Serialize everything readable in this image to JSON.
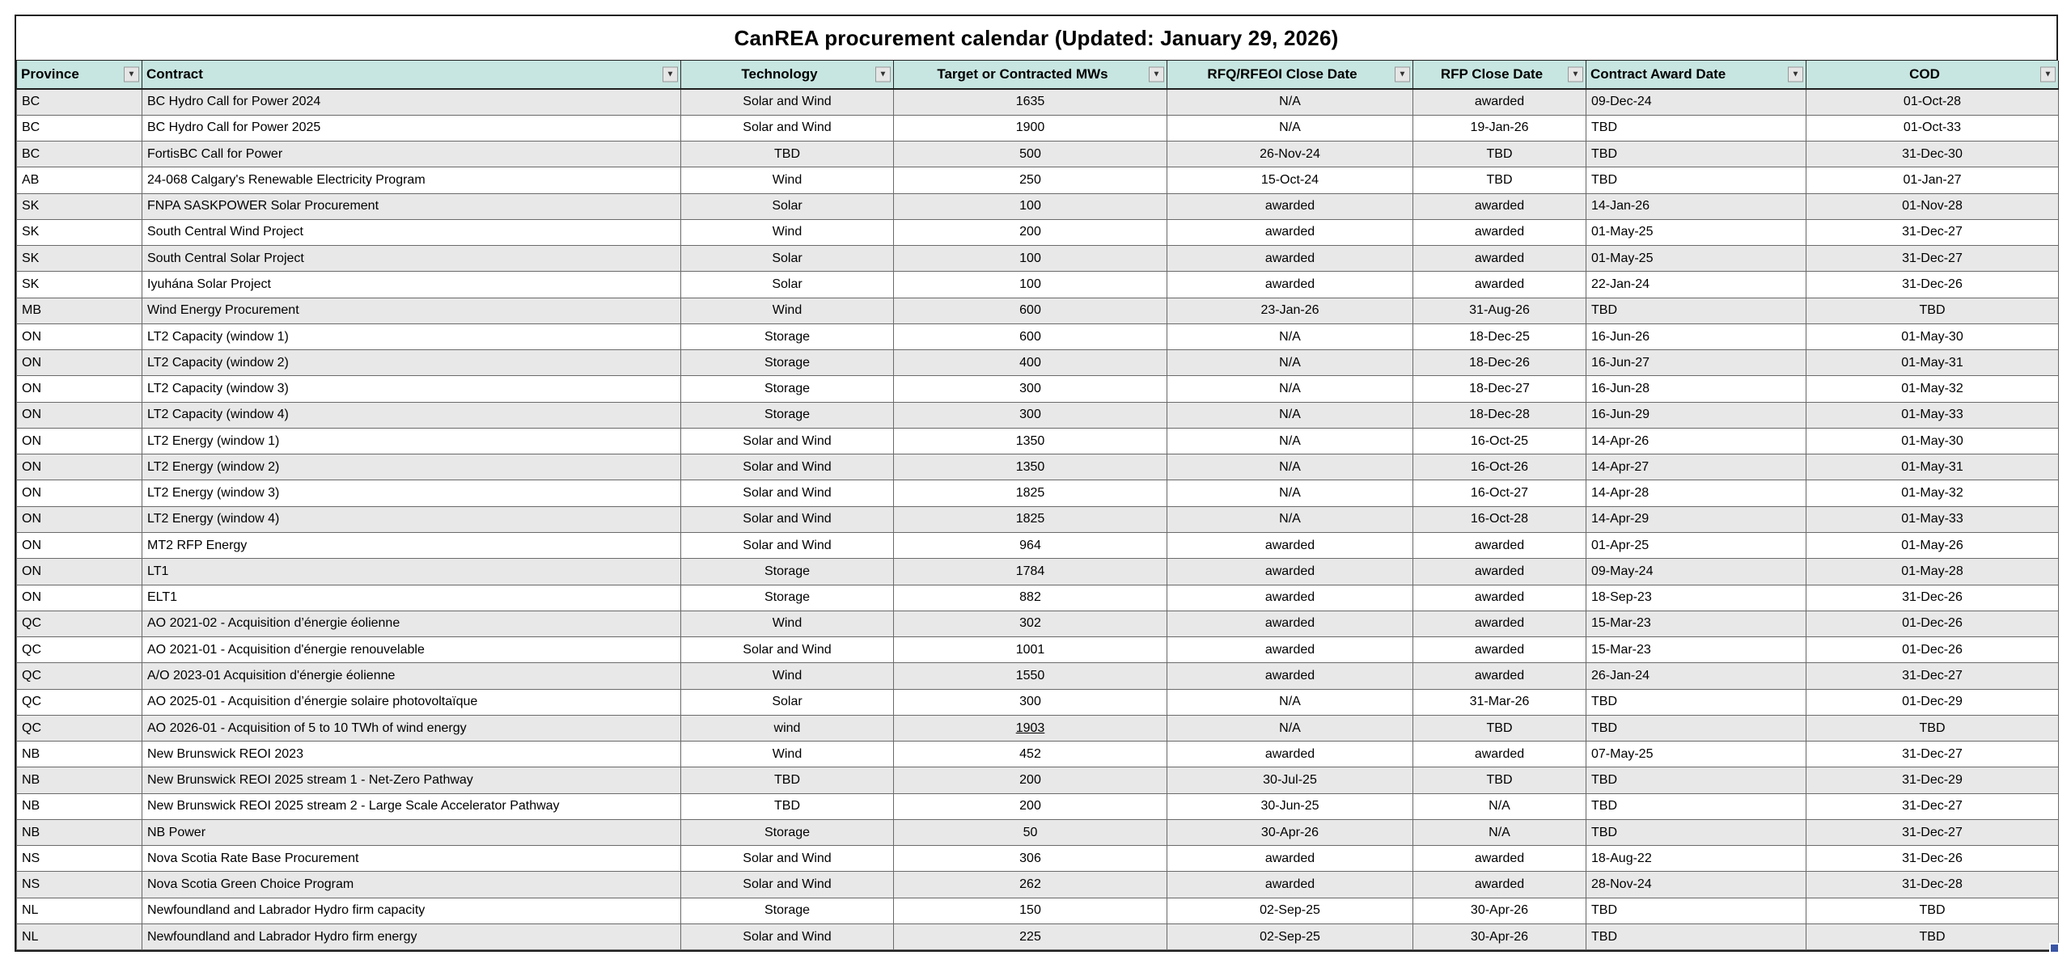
{
  "title": "CanREA procurement calendar (Updated: January 29, 2026)",
  "filter_icon": "▼",
  "columns": [
    {
      "id": "province",
      "label": "Province",
      "align": "left"
    },
    {
      "id": "contract",
      "label": "Contract",
      "align": "left"
    },
    {
      "id": "technology",
      "label": "Technology",
      "align": "center"
    },
    {
      "id": "mws",
      "label": "Target or Contracted MWs",
      "align": "center"
    },
    {
      "id": "rfq",
      "label": "RFQ/RFEOI Close Date",
      "align": "center"
    },
    {
      "id": "rfp",
      "label": "RFP Close Date",
      "align": "center"
    },
    {
      "id": "award",
      "label": "Contract Award Date",
      "align": "left"
    },
    {
      "id": "cod",
      "label": "COD",
      "align": "center"
    }
  ],
  "rows": [
    {
      "province": "BC",
      "contract": "BC Hydro Call for Power 2024",
      "technology": "Solar and Wind",
      "mws": "1635",
      "rfq": "N/A",
      "rfp": "awarded",
      "award": "09-Dec-24",
      "cod": "01-Oct-28"
    },
    {
      "province": "BC",
      "contract": "BC Hydro Call for Power 2025",
      "technology": "Solar and Wind",
      "mws": "1900",
      "rfq": "N/A",
      "rfp": "19-Jan-26",
      "award": "TBD",
      "cod": "01-Oct-33"
    },
    {
      "province": "BC",
      "contract": "FortisBC Call for Power",
      "technology": "TBD",
      "mws": "500",
      "rfq": "26-Nov-24",
      "rfp": "TBD",
      "award": "TBD",
      "cod": "31-Dec-30"
    },
    {
      "province": "AB",
      "contract": "24-068 Calgary's Renewable Electricity Program",
      "technology": "Wind",
      "mws": "250",
      "rfq": "15-Oct-24",
      "rfp": "TBD",
      "award": "TBD",
      "cod": "01-Jan-27"
    },
    {
      "province": "SK",
      "contract": "FNPA SASKPOWER Solar Procurement",
      "technology": "Solar",
      "mws": "100",
      "rfq": "awarded",
      "rfp": "awarded",
      "award": "14-Jan-26",
      "cod": "01-Nov-28"
    },
    {
      "province": "SK",
      "contract": "South Central Wind Project",
      "technology": "Wind",
      "mws": "200",
      "rfq": "awarded",
      "rfp": "awarded",
      "award": "01-May-25",
      "cod": "31-Dec-27"
    },
    {
      "province": "SK",
      "contract": "South Central Solar Project",
      "technology": "Solar",
      "mws": "100",
      "rfq": "awarded",
      "rfp": "awarded",
      "award": "01-May-25",
      "cod": "31-Dec-27"
    },
    {
      "province": "SK",
      "contract": "Iyuhána Solar Project",
      "technology": "Solar",
      "mws": "100",
      "rfq": "awarded",
      "rfp": "awarded",
      "award": "22-Jan-24",
      "cod": "31-Dec-26"
    },
    {
      "province": "MB",
      "contract": "Wind Energy Procurement",
      "technology": "Wind",
      "mws": "600",
      "rfq": "23-Jan-26",
      "rfp": "31-Aug-26",
      "award": "TBD",
      "cod": "TBD"
    },
    {
      "province": "ON",
      "contract": "LT2  Capacity (window 1)",
      "technology": "Storage",
      "mws": "600",
      "rfq": "N/A",
      "rfp": "18-Dec-25",
      "award": "16-Jun-26",
      "cod": "01-May-30"
    },
    {
      "province": "ON",
      "contract": "LT2  Capacity (window 2)",
      "technology": "Storage",
      "mws": "400",
      "rfq": "N/A",
      "rfp": "18-Dec-26",
      "award": "16-Jun-27",
      "cod": "01-May-31"
    },
    {
      "province": "ON",
      "contract": "LT2  Capacity (window 3)",
      "technology": "Storage",
      "mws": "300",
      "rfq": "N/A",
      "rfp": "18-Dec-27",
      "award": "16-Jun-28",
      "cod": "01-May-32"
    },
    {
      "province": "ON",
      "contract": "LT2  Capacity (window 4)",
      "technology": "Storage",
      "mws": "300",
      "rfq": "N/A",
      "rfp": "18-Dec-28",
      "award": "16-Jun-29",
      "cod": "01-May-33"
    },
    {
      "province": "ON",
      "contract": "LT2  Energy  (window 1)",
      "technology": "Solar and Wind",
      "mws": "1350",
      "rfq": "N/A",
      "rfp": "16-Oct-25",
      "award": "14-Apr-26",
      "cod": "01-May-30"
    },
    {
      "province": "ON",
      "contract": "LT2  Energy  (window 2)",
      "technology": "Solar and Wind",
      "mws": "1350",
      "rfq": "N/A",
      "rfp": "16-Oct-26",
      "award": "14-Apr-27",
      "cod": "01-May-31"
    },
    {
      "province": "ON",
      "contract": "LT2  Energy  (window 3)",
      "technology": "Solar and Wind",
      "mws": "1825",
      "rfq": "N/A",
      "rfp": "16-Oct-27",
      "award": "14-Apr-28",
      "cod": "01-May-32"
    },
    {
      "province": "ON",
      "contract": "LT2  Energy  (window 4)",
      "technology": "Solar and Wind",
      "mws": "1825",
      "rfq": "N/A",
      "rfp": "16-Oct-28",
      "award": "14-Apr-29",
      "cod": "01-May-33"
    },
    {
      "province": "ON",
      "contract": "MT2 RFP Energy",
      "technology": "Solar and Wind",
      "mws": "964",
      "rfq": "awarded",
      "rfp": "awarded",
      "award": "01-Apr-25",
      "cod": "01-May-26"
    },
    {
      "province": "ON",
      "contract": "LT1",
      "technology": "Storage",
      "mws": "1784",
      "rfq": "awarded",
      "rfp": "awarded",
      "award": "09-May-24",
      "cod": "01-May-28"
    },
    {
      "province": "ON",
      "contract": "ELT1",
      "technology": "Storage",
      "mws": "882",
      "rfq": "awarded",
      "rfp": "awarded",
      "award": "18-Sep-23",
      "cod": "31-Dec-26"
    },
    {
      "province": "QC",
      "contract": "AO 2021-02 - Acquisition d’énergie éolienne",
      "technology": "Wind",
      "mws": "302",
      "rfq": "awarded",
      "rfp": "awarded",
      "award": "15-Mar-23",
      "cod": "01-Dec-26"
    },
    {
      "province": "QC",
      "contract": "AO 2021-01 - Acquisition d'énergie renouvelable",
      "technology": "Solar and Wind",
      "mws": "1001",
      "rfq": "awarded",
      "rfp": "awarded",
      "award": "15-Mar-23",
      "cod": "01-Dec-26"
    },
    {
      "province": "QC",
      "contract": "A/O 2023-01 Acquisition  d'énergie éolienne",
      "technology": "Wind",
      "mws": "1550",
      "rfq": "awarded",
      "rfp": "awarded",
      "award": "26-Jan-24",
      "cod": "31-Dec-27"
    },
    {
      "province": "QC",
      "contract": "AO 2025-01 - Acquisition d’énergie solaire photovoltaïque",
      "technology": "Solar",
      "mws": "300",
      "rfq": "N/A",
      "rfp": "31-Mar-26",
      "award": "TBD",
      "cod": "01-Dec-29"
    },
    {
      "province": "QC",
      "contract": "AO 2026-01 - Acquisition of 5 to 10 TWh of wind energy",
      "technology": "wind",
      "mws": "1903",
      "mws_underlined": true,
      "rfq": "N/A",
      "rfp": "TBD",
      "award": "TBD",
      "cod": "TBD"
    },
    {
      "province": "NB",
      "contract": "New Brunswick REOI 2023",
      "technology": "Wind",
      "mws": "452",
      "rfq": "awarded",
      "rfp": "awarded",
      "award": "07-May-25",
      "cod": "31-Dec-27"
    },
    {
      "province": "NB",
      "contract": "New Brunswick REOI 2025 stream 1 - Net-Zero Pathway",
      "technology": "TBD",
      "mws": "200",
      "rfq": "30-Jul-25",
      "rfp": "TBD",
      "award": "TBD",
      "cod": "31-Dec-29"
    },
    {
      "province": "NB",
      "contract": "New Brunswick REOI 2025 stream 2 - Large Scale Accelerator Pathway",
      "technology": "TBD",
      "mws": "200",
      "rfq": "30-Jun-25",
      "rfp": "N/A",
      "award": "TBD",
      "cod": "31-Dec-27"
    },
    {
      "province": "NB",
      "contract": "NB Power",
      "technology": "Storage",
      "mws": "50",
      "rfq": "30-Apr-26",
      "rfp": "N/A",
      "award": "TBD",
      "cod": "31-Dec-27"
    },
    {
      "province": "NS",
      "contract": "Nova Scotia Rate Base Procurement",
      "technology": "Solar and Wind",
      "mws": "306",
      "rfq": "awarded",
      "rfp": "awarded",
      "award": "18-Aug-22",
      "cod": "31-Dec-26"
    },
    {
      "province": "NS",
      "contract": "Nova Scotia Green Choice Program",
      "technology": "Solar and Wind",
      "mws": "262",
      "rfq": "awarded",
      "rfp": "awarded",
      "award": "28-Nov-24",
      "cod": "31-Dec-28"
    },
    {
      "province": "NL",
      "contract": "Newfoundland and Labrador Hydro firm capacity",
      "technology": "Storage",
      "mws": "150",
      "rfq": "02-Sep-25",
      "rfp": "30-Apr-26",
      "award": "TBD",
      "cod": "TBD"
    },
    {
      "province": "NL",
      "contract": "Newfoundland and Labrador Hydro firm energy",
      "technology": "Solar and Wind",
      "mws": "225",
      "rfq": "02-Sep-25",
      "rfp": "30-Apr-26",
      "award": "TBD",
      "cod": "TBD"
    }
  ],
  "colors": {
    "header_bg": "#c7e6e1",
    "stripe_bg": "#e8e8e8",
    "handle": "#3a55a4"
  }
}
